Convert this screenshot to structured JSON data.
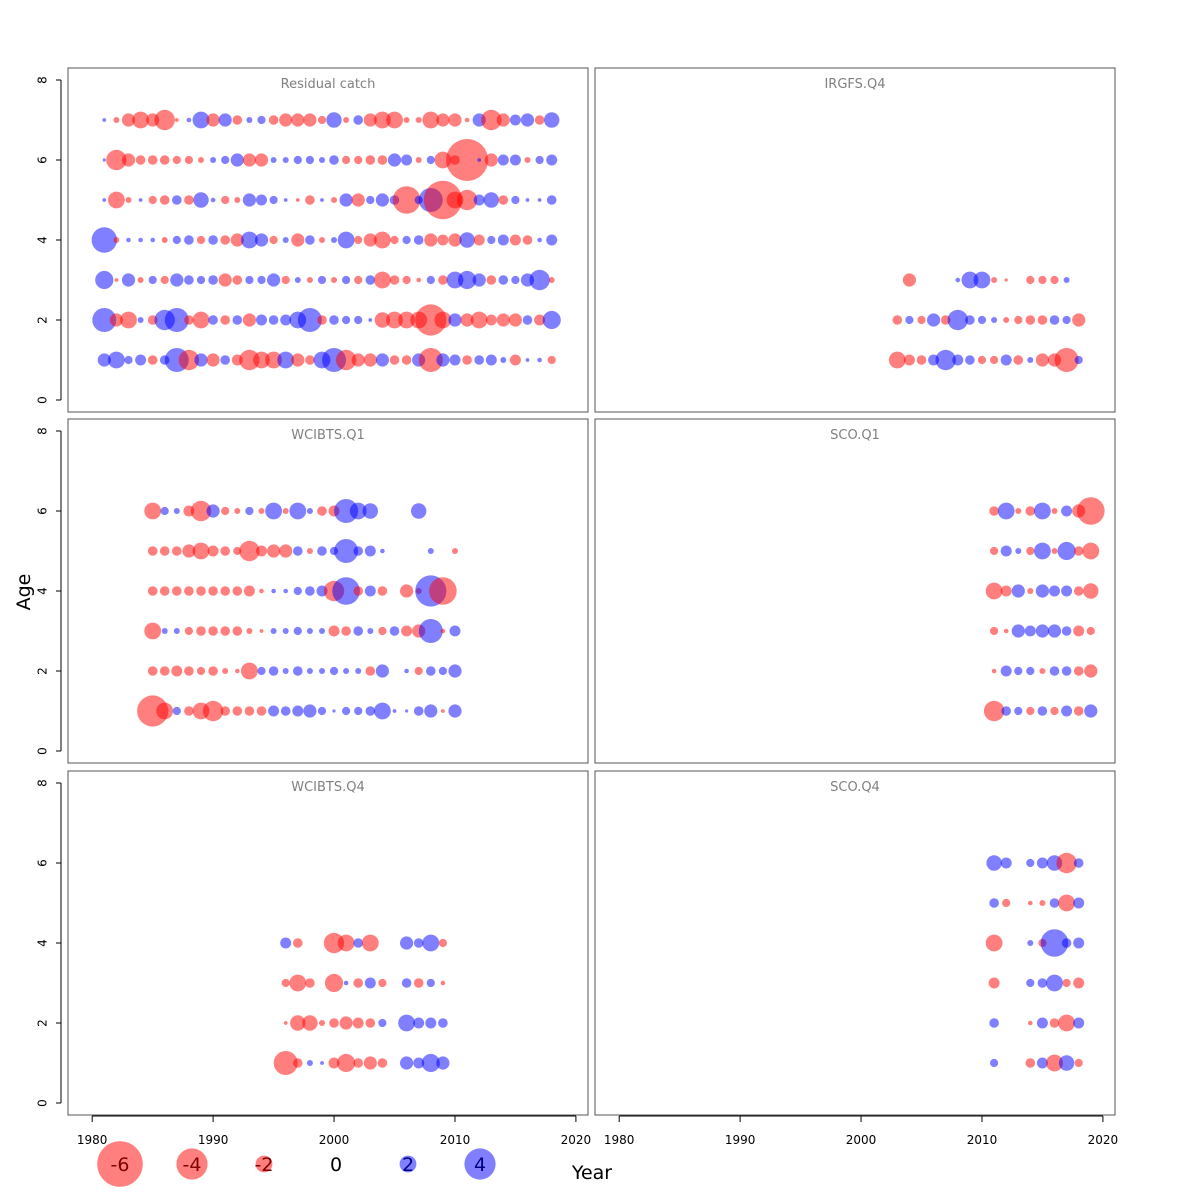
{
  "chart_data": {
    "type": "scatter",
    "xlabel": "Year",
    "ylabel": "Age",
    "xlim": [
      1978,
      2021
    ],
    "ylim": [
      -0.3,
      8.3
    ],
    "x_ticks": [
      1980,
      1990,
      2000,
      2010,
      2020
    ],
    "y_ticks": [
      0,
      2,
      4,
      6,
      8
    ],
    "colors": {
      "negative": "#ff0000",
      "positive": "#0000ff",
      "opacity": 0.5
    },
    "legend": {
      "position": "bottom-left",
      "values": [
        -6,
        -4,
        -2,
        0,
        2,
        4
      ],
      "labels": [
        "-6",
        "-4",
        "-2",
        "0",
        "2",
        "4"
      ]
    },
    "panels": [
      {
        "title": "Residual catch",
        "ages": [
          1,
          2,
          3,
          4,
          5,
          6,
          7
        ],
        "years": [
          1981,
          1982,
          1983,
          1984,
          1985,
          1986,
          1987,
          1988,
          1989,
          1990,
          1991,
          1992,
          1993,
          1994,
          1995,
          1996,
          1997,
          1998,
          1999,
          2000,
          2001,
          2002,
          2003,
          2004,
          2005,
          2006,
          2007,
          2008,
          2009,
          2010,
          2011,
          2012,
          2013,
          2014,
          2015,
          2016,
          2017,
          2018
        ],
        "residuals": [
          [
            1.5,
            2,
            0.8,
            1.2,
            -1,
            1,
            3,
            -2.5,
            1.5,
            -1.5,
            1,
            -1.2,
            -2.5,
            -2,
            -2,
            2,
            -1.5,
            -1,
            2,
            3,
            -2.5,
            -1.5,
            -1.5,
            1.5,
            -1,
            -1,
            1.5,
            -3,
            1.5,
            1.2,
            -1,
            1,
            1.2,
            0.5,
            -1.2,
            0.2,
            0.3,
            -0.8
          ],
          [
            3,
            -1.5,
            -2,
            0.5,
            -1,
            2.5,
            3,
            -1,
            -2,
            1,
            -1,
            1,
            -1.5,
            1.2,
            1,
            1.2,
            2,
            3,
            -1,
            1,
            0.8,
            0.8,
            0.2,
            -1.8,
            -2,
            -2,
            -2,
            -4,
            -2,
            1.5,
            -1.5,
            -2,
            -1.2,
            -1.5,
            -1.5,
            1,
            -1.2,
            2.2
          ],
          [
            2.2,
            -0.2,
            1.5,
            -0.5,
            0.8,
            -0.8,
            1.5,
            1,
            0.8,
            1,
            -1.5,
            -1,
            0.8,
            0.8,
            1.5,
            -0.8,
            0.5,
            -0.5,
            0.8,
            -0.5,
            0.8,
            -0.8,
            1,
            -2,
            -1,
            -0.8,
            -0.3,
            0.8,
            -1,
            2,
            2.2,
            1.5,
            -1,
            1,
            0.8,
            1.5,
            2.5,
            -0.5
          ],
          [
            3.2,
            -0.5,
            0.3,
            0.3,
            0.3,
            -0.5,
            0.8,
            1,
            -0.8,
            1,
            -1,
            -1.5,
            2,
            1.5,
            -0.8,
            0.5,
            -1.5,
            1,
            -0.5,
            0.5,
            2,
            -0.8,
            -1.5,
            -2,
            -0.8,
            0.8,
            1,
            -1.5,
            -1.2,
            -1.5,
            1.8,
            -1.2,
            0.8,
            1.2,
            -1.2,
            -1,
            0.3,
            1.2
          ],
          [
            0.2,
            -2,
            -0.5,
            0.2,
            -0.8,
            -1,
            1,
            -1,
            1.8,
            0.3,
            -0.8,
            -0.5,
            1.5,
            1.2,
            0.8,
            0.2,
            -0.2,
            -1,
            0.2,
            -0.5,
            1.5,
            -1.5,
            0.8,
            1.5,
            1,
            -3.5,
            0.8,
            3,
            -5,
            -2,
            -2.5,
            1.2,
            1.8,
            -1,
            0.8,
            0.2,
            0.2,
            1
          ],
          [
            0.1,
            -2.5,
            -1.5,
            -1,
            -1,
            -1,
            -0.8,
            -0.8,
            -0.5,
            0.5,
            0.8,
            1.5,
            -1.5,
            -1.5,
            0.5,
            0.5,
            0.8,
            0.8,
            0.5,
            1,
            -0.8,
            -0.8,
            -1,
            -1,
            1.5,
            1.2,
            -0.5,
            0.8,
            -2,
            -1,
            -5.5,
            0.2,
            -1.5,
            1.2,
            1.2,
            -0.5,
            0.8,
            1.2
          ],
          [
            0.2,
            -0.5,
            -1.5,
            -2,
            -1.5,
            -2.5,
            -0.2,
            0.3,
            2,
            -1.5,
            1.5,
            -1,
            0.5,
            0.8,
            -1,
            -1.5,
            -1.5,
            -1.5,
            -0.8,
            1.8,
            -0.5,
            1,
            -1.5,
            -2,
            -2,
            -0.5,
            -0.5,
            -2,
            -1.5,
            -1.5,
            -0.3,
            1.5,
            -2.5,
            -1.5,
            1.2,
            1.5,
            -1,
            1.8
          ]
        ]
      },
      {
        "title": "IRGFS.Q4",
        "ages": [
          1,
          2,
          3
        ],
        "years": [
          2003,
          2004,
          2005,
          2006,
          2007,
          2008,
          2009,
          2010,
          2011,
          2012,
          2013,
          2014,
          2015,
          2016,
          2017,
          2018
        ],
        "residuals": [
          [
            -2,
            -1.2,
            -1,
            1.2,
            2.5,
            1.2,
            1,
            -0.8,
            -0.8,
            1.2,
            -1,
            0.5,
            -1.5,
            -1.5,
            -3,
            0.8
          ],
          [
            -1,
            0.8,
            -0.8,
            1.5,
            -1,
            2.5,
            1,
            0.8,
            0.5,
            -0.5,
            -0.8,
            -1,
            -1,
            1,
            0.8,
            -1.5
          ],
          [
            null,
            -1.5,
            null,
            null,
            null,
            0.3,
            2,
            2,
            -0.5,
            -0.1,
            null,
            -0.8,
            -0.8,
            -0.8,
            0.5,
            null
          ]
        ]
      },
      {
        "title": "WCIBTS.Q1",
        "ages": [
          1,
          2,
          3,
          4,
          5,
          6
        ],
        "years": [
          1985,
          1986,
          1987,
          1988,
          1989,
          1990,
          1991,
          1992,
          1993,
          1994,
          1995,
          1996,
          1997,
          1998,
          1999,
          2000,
          2001,
          2002,
          2003,
          2004,
          2005,
          2006,
          2007,
          2008,
          2009,
          2010
        ],
        "residuals": [
          [
            -4,
            -2,
            0.8,
            -1,
            -2,
            -2.5,
            -1,
            -1,
            -1,
            -1,
            1.2,
            1,
            1.2,
            1.5,
            0.8,
            0.1,
            0.8,
            0.8,
            1,
            2,
            0.2,
            0.1,
            1,
            1.5,
            -0.2,
            1.5
          ],
          [
            -1,
            -1,
            -1.2,
            -1,
            -0.8,
            -1,
            -0.5,
            -0.3,
            -2,
            0.8,
            1,
            0.5,
            1,
            0.5,
            0.5,
            0.8,
            0.5,
            0.5,
            -1,
            1.5,
            null,
            0.3,
            -0.8,
            1,
            0.8,
            1.5
          ],
          [
            -2,
            0.5,
            0.5,
            -0.8,
            -1,
            -1,
            -1,
            -1,
            -0.5,
            -0.2,
            0.5,
            0.5,
            0.8,
            0.5,
            0.5,
            -1.2,
            -1,
            1,
            0.5,
            -0.8,
            1,
            -1.2,
            -1.5,
            3,
            -0.3,
            1.2
          ],
          [
            -1,
            -1,
            -1,
            -1,
            -1,
            -1,
            -1,
            -1,
            -1.2,
            -0.3,
            0.3,
            0.3,
            0.8,
            1,
            1.2,
            -2.5,
            3.5,
            -1,
            1.2,
            -1,
            null,
            -1.5,
            -0.5,
            4,
            -3.5,
            null
          ],
          [
            -1,
            -1,
            -1,
            -1.5,
            -2,
            -1.2,
            -1,
            -0.8,
            -2.5,
            -1.2,
            -1.5,
            -1.5,
            1,
            -0.5,
            1,
            0.8,
            3,
            1,
            1.2,
            0.3,
            null,
            null,
            null,
            0.5,
            null,
            -0.5
          ],
          [
            -2,
            0.8,
            0.5,
            -1.2,
            -2.5,
            1.5,
            -0.8,
            -0.5,
            0.8,
            -0.5,
            2,
            -0.5,
            2,
            0.5,
            -1,
            -1.2,
            3,
            2,
            1.8,
            null,
            null,
            null,
            1.8,
            null,
            null,
            null
          ]
        ]
      },
      {
        "title": "SCO.Q1",
        "ages": [
          1,
          2,
          3,
          4,
          5,
          6
        ],
        "years": [
          2011,
          2012,
          2013,
          2014,
          2015,
          2016,
          2017,
          2018,
          2019
        ],
        "residuals": [
          [
            -2.5,
            1,
            0.8,
            -0.8,
            1,
            -0.8,
            1.2,
            -1,
            1.5
          ],
          [
            -0.3,
            1.2,
            0.8,
            0.8,
            -0.5,
            1,
            1,
            -1,
            -1.5
          ],
          [
            -0.8,
            -0.3,
            1.5,
            1.2,
            1.5,
            1.5,
            1,
            -1.2,
            -0.8
          ],
          [
            -2,
            -1.2,
            1.5,
            -0.5,
            1.5,
            1.2,
            1.2,
            -1,
            -1.8
          ],
          [
            -0.8,
            1.2,
            0.5,
            -0.8,
            2,
            -0.5,
            2.2,
            -1,
            -2
          ],
          [
            -1,
            2,
            -0.5,
            -1,
            2,
            -0.5,
            1.2,
            -1.5,
            -3.5
          ]
        ]
      },
      {
        "title": "WCIBTS.Q4",
        "ages": [
          1,
          2,
          3,
          4
        ],
        "years": [
          1996,
          1997,
          1998,
          1999,
          2000,
          2001,
          2002,
          2003,
          2004,
          2005,
          2006,
          2007,
          2008,
          2009
        ],
        "residuals": [
          [
            -3,
            -1,
            0.5,
            0.2,
            -1.2,
            -2.2,
            -1,
            -1.5,
            -1,
            null,
            1.5,
            1.2,
            2.2,
            1.5
          ],
          [
            -0.2,
            -1.8,
            -1.8,
            -0.5,
            -1,
            -1.5,
            -1.2,
            -1,
            0.8,
            null,
            2,
            1.2,
            1.2,
            1
          ],
          [
            -0.8,
            -2,
            -1,
            null,
            -2.2,
            0.3,
            -1,
            1.2,
            -0.8,
            null,
            1,
            -1,
            0.8,
            -0.3
          ],
          [
            1.2,
            -1,
            null,
            null,
            -2.5,
            -2,
            1,
            -2,
            null,
            null,
            1.5,
            1,
            2,
            -0.8
          ]
        ]
      },
      {
        "title": "SCO.Q4",
        "ages": [
          1,
          2,
          3,
          4,
          5,
          6
        ],
        "years": [
          2011,
          2012,
          2013,
          2014,
          2015,
          2016,
          2017,
          2018
        ],
        "residuals": [
          [
            0.8,
            null,
            null,
            -1,
            1.2,
            -2,
            1.8,
            -0.8
          ],
          [
            1,
            null,
            null,
            -0.3,
            1.2,
            -1,
            -2,
            1.2
          ],
          [
            -1.2,
            null,
            null,
            0.8,
            1,
            2,
            -0.8,
            -1.2
          ],
          [
            -2,
            null,
            null,
            0.5,
            -0.8,
            3.5,
            1,
            1.2
          ],
          [
            1,
            -0.8,
            null,
            -0.3,
            -0.5,
            1,
            -2,
            1.2
          ],
          [
            1.8,
            1.2,
            null,
            0.8,
            1.2,
            1.8,
            -2.5,
            1
          ]
        ]
      }
    ]
  }
}
